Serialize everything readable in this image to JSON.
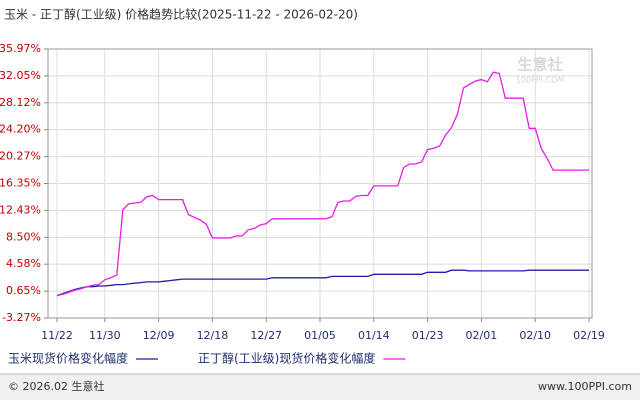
{
  "chart_data": {
    "type": "line",
    "title": "玉米 - 正丁醇(工业级) 价格趋势比较(2025-11-22 - 2026-02-20)",
    "watermark": "生意社",
    "watermark_sub": "100PPI.COM",
    "footer_left": "© 2026.02 生意社",
    "footer_right": "www.100PPI.com",
    "categories": [
      "11/22",
      null,
      null,
      null,
      null,
      null,
      null,
      null,
      "11/30",
      null,
      null,
      null,
      null,
      null,
      null,
      null,
      null,
      "12/09",
      null,
      null,
      null,
      null,
      null,
      null,
      null,
      null,
      "12/18",
      null,
      null,
      null,
      null,
      null,
      null,
      null,
      null,
      "12/27",
      null,
      null,
      null,
      null,
      null,
      null,
      null,
      null,
      "01/05",
      null,
      null,
      null,
      null,
      null,
      null,
      null,
      null,
      "01/14",
      null,
      null,
      null,
      null,
      null,
      null,
      null,
      null,
      "01/23",
      null,
      null,
      null,
      null,
      null,
      null,
      null,
      null,
      "02/01",
      null,
      null,
      null,
      null,
      null,
      null,
      null,
      null,
      "02/10",
      null,
      null,
      null,
      null,
      null,
      null,
      null,
      null,
      "02/19"
    ],
    "series": [
      {
        "name": "玉米现货价格变化幅度",
        "color": "#1f1fa8",
        "values": [
          0,
          0.3,
          0.6,
          0.9,
          1.1,
          1.3,
          1.3,
          1.4,
          1.4,
          1.5,
          1.6,
          1.6,
          1.7,
          1.8,
          1.9,
          2.0,
          2.0,
          2.0,
          2.1,
          2.2,
          2.3,
          2.4,
          2.4,
          2.4,
          2.4,
          2.4,
          2.4,
          2.4,
          2.4,
          2.4,
          2.4,
          2.4,
          2.4,
          2.4,
          2.4,
          2.4,
          2.6,
          2.6,
          2.6,
          2.6,
          2.6,
          2.6,
          2.6,
          2.6,
          2.6,
          2.6,
          2.8,
          2.8,
          2.8,
          2.8,
          2.8,
          2.8,
          2.8,
          3.1,
          3.1,
          3.1,
          3.1,
          3.1,
          3.1,
          3.1,
          3.1,
          3.1,
          3.4,
          3.4,
          3.4,
          3.4,
          3.7,
          3.7,
          3.7,
          3.6,
          3.6,
          3.6,
          3.6,
          3.6,
          3.6,
          3.6,
          3.6,
          3.6,
          3.6,
          3.7,
          3.7,
          3.7,
          3.7,
          3.7,
          3.7,
          3.7,
          3.7,
          3.7,
          3.7,
          3.7
        ]
      },
      {
        "name": "正丁醇(工业级)现货价格变化幅度",
        "color": "#e61ee6",
        "values": [
          0,
          0.2,
          0.5,
          0.8,
          1.0,
          1.3,
          1.5,
          1.6,
          2.3,
          2.6,
          3.0,
          12.5,
          13.4,
          13.5,
          13.6,
          14.4,
          14.6,
          14.0,
          14.0,
          14.0,
          14.0,
          14.0,
          11.8,
          11.4,
          11.0,
          10.4,
          8.4,
          8.4,
          8.4,
          8.4,
          8.7,
          8.7,
          9.6,
          9.8,
          10.3,
          10.5,
          11.2,
          11.2,
          11.2,
          11.2,
          11.2,
          11.2,
          11.2,
          11.2,
          11.2,
          11.2,
          11.5,
          13.6,
          13.8,
          13.8,
          14.5,
          14.6,
          14.6,
          16.0,
          16.0,
          16.0,
          16.0,
          16.0,
          18.7,
          19.2,
          19.2,
          19.5,
          21.3,
          21.5,
          21.8,
          23.4,
          24.5,
          26.5,
          30.3,
          30.8,
          31.3,
          31.5,
          31.2,
          32.6,
          32.4,
          28.8,
          28.8,
          28.8,
          28.8,
          24.4,
          24.4,
          21.5,
          20.0,
          18.3,
          18.3,
          18.3,
          18.3,
          18.3,
          18.3,
          18.3
        ]
      }
    ],
    "ylim": [
      -3.27,
      35.97
    ],
    "yticks": [
      {
        "value": -3.27,
        "label": "-3.27%"
      },
      {
        "value": 0.65,
        "label": "0.65%"
      },
      {
        "value": 4.58,
        "label": "4.58%"
      },
      {
        "value": 8.5,
        "label": "8.50%"
      },
      {
        "value": 12.43,
        "label": "12.43%"
      },
      {
        "value": 16.35,
        "label": "16.35%"
      },
      {
        "value": 20.27,
        "label": "20.27%"
      },
      {
        "value": 24.2,
        "label": "24.20%"
      },
      {
        "value": 28.12,
        "label": "28.12%"
      },
      {
        "value": 32.05,
        "label": "32.05%"
      },
      {
        "value": 35.97,
        "label": "35.97%"
      }
    ],
    "grid": true
  }
}
